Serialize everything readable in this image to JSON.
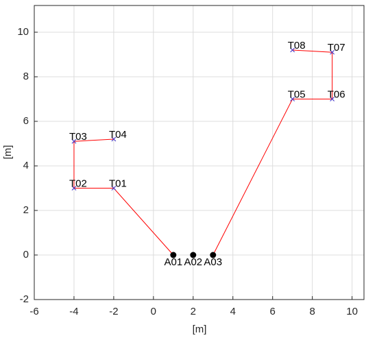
{
  "chart_data": {
    "type": "line",
    "xlabel": "[m]",
    "ylabel": "[m]",
    "xlim": [
      -6,
      10.6
    ],
    "ylim": [
      -2,
      11.2
    ],
    "xticks": [
      -6,
      -4,
      -2,
      0,
      2,
      4,
      6,
      8,
      10
    ],
    "yticks": [
      -2,
      0,
      2,
      4,
      6,
      8,
      10
    ],
    "grid": true,
    "series": [
      {
        "x": [
          1,
          -2,
          -4,
          -4,
          -2
        ],
        "values": [
          0,
          3,
          3,
          5.1,
          5.2
        ],
        "color": "#ff0000",
        "marker": "none"
      },
      {
        "x": [
          3,
          7,
          9,
          9,
          7
        ],
        "values": [
          0,
          7,
          7,
          9.1,
          9.2
        ],
        "color": "#ff0000",
        "marker": "none"
      },
      {
        "x": [
          -2,
          -4,
          -4,
          -2,
          7,
          9,
          9,
          7
        ],
        "values": [
          3,
          3,
          5.1,
          5.2,
          7,
          7,
          9.1,
          9.2
        ],
        "labels": [
          "T01",
          "T02",
          "T03",
          "T04",
          "T05",
          "T06",
          "T07",
          "T08"
        ],
        "color": "#4b3cc8",
        "marker": "x",
        "label_position": "above"
      },
      {
        "x": [
          1,
          2,
          3
        ],
        "values": [
          0,
          0,
          0
        ],
        "labels": [
          "A01",
          "A02",
          "A03"
        ],
        "color": "#000000",
        "marker": "dot",
        "label_position": "below"
      }
    ]
  }
}
